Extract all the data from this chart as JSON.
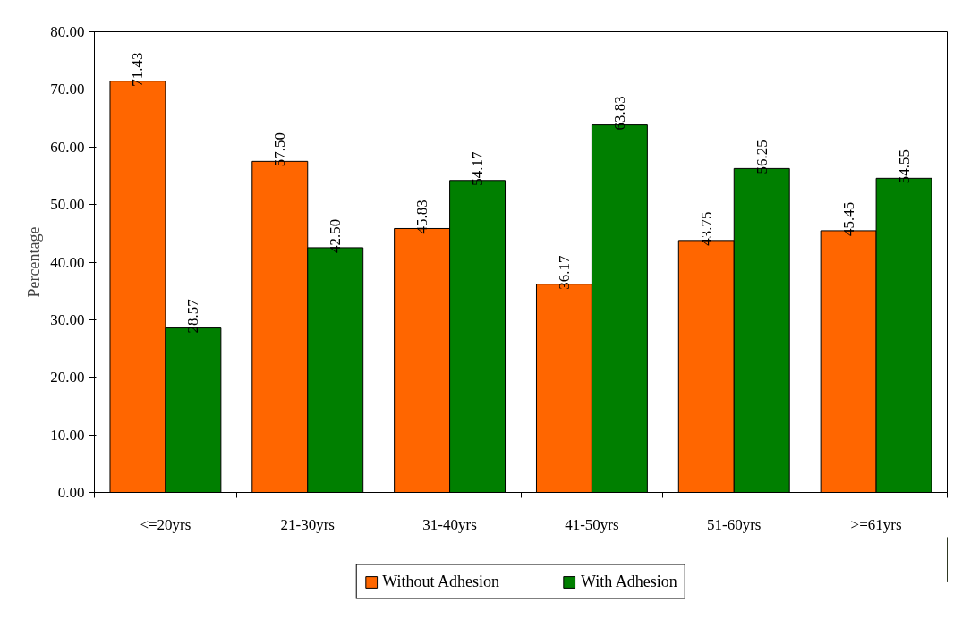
{
  "chart_data": {
    "type": "bar",
    "ylabel": "Percentage",
    "categories": [
      "<=20yrs",
      "21-30yrs",
      "31-40yrs",
      "41-50yrs",
      "51-60yrs",
      ">=61yrs"
    ],
    "series": [
      {
        "name": "Without Adhesion",
        "color": "#ff6600",
        "values": [
          71.43,
          57.5,
          45.83,
          36.17,
          43.75,
          45.45
        ],
        "value_labels": [
          "71.43",
          "57.50",
          "45.83",
          "36.17",
          "43.75",
          "45.45"
        ]
      },
      {
        "name": "With Adhesion",
        "color": "#007f00",
        "values": [
          28.57,
          42.5,
          54.17,
          63.83,
          56.25,
          54.55
        ],
        "value_labels": [
          "28.57",
          "42.50",
          "54.17",
          "63.83",
          "56.25",
          "54.55"
        ]
      }
    ],
    "ylim": [
      0,
      80
    ],
    "yticks": [
      {
        "value": 0,
        "label": "0.00"
      },
      {
        "value": 10,
        "label": "10.00"
      },
      {
        "value": 20,
        "label": "20.00"
      },
      {
        "value": 30,
        "label": "30.00"
      },
      {
        "value": 40,
        "label": "40.00"
      },
      {
        "value": 50,
        "label": "50.00"
      },
      {
        "value": 60,
        "label": "60.00"
      },
      {
        "value": 70,
        "label": "70.00"
      },
      {
        "value": 80,
        "label": "80.00"
      }
    ],
    "data_labels": true,
    "grid": false,
    "legend": "bottom"
  }
}
